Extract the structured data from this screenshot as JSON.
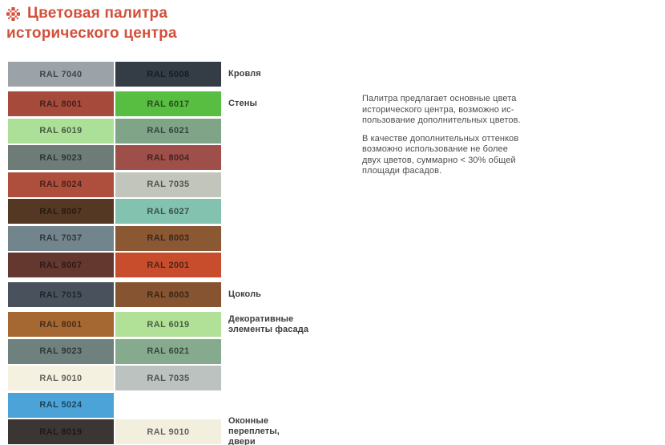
{
  "header": {
    "title_line1": "Цветовая палитра",
    "title_line2": "исторического центра",
    "accent_color": "#d2503c",
    "icon": "ornament-icon"
  },
  "palette": {
    "rows": [
      {
        "left": {
          "code": "RAL 7040",
          "color": "#9ba2a8"
        },
        "right": {
          "code": "RAL 5008",
          "color": "#343c46"
        },
        "label": [
          "Кровля"
        ],
        "group_start": false
      },
      {
        "left": {
          "code": "RAL 8001",
          "color": "#a64a3c"
        },
        "right": {
          "code": "RAL 6017",
          "color": "#58be41"
        },
        "label": [
          "Стены"
        ],
        "group_start": true
      },
      {
        "left": {
          "code": "RAL 6019",
          "color": "#acdf98"
        },
        "right": {
          "code": "RAL 6021",
          "color": "#80a488"
        },
        "label": [],
        "group_start": false
      },
      {
        "left": {
          "code": "RAL 9023",
          "color": "#6e7c78"
        },
        "right": {
          "code": "RAL 8004",
          "color": "#9f4f49"
        },
        "label": [],
        "group_start": false
      },
      {
        "left": {
          "code": "RAL 8024",
          "color": "#ae4e3c"
        },
        "right": {
          "code": "RAL 7035",
          "color": "#c2c5bb"
        },
        "label": [],
        "group_start": false
      },
      {
        "left": {
          "code": "RAL 8007",
          "color": "#553823"
        },
        "right": {
          "code": "RAL 6027",
          "color": "#83c2af"
        },
        "label": [],
        "group_start": false
      },
      {
        "left": {
          "code": "RAL 7037",
          "color": "#73858c"
        },
        "right": {
          "code": "RAL 8003",
          "color": "#8b5834"
        },
        "label": [],
        "group_start": false
      },
      {
        "left": {
          "code": "RAL 8007",
          "color": "#64382f"
        },
        "right": {
          "code": "RAL 2001",
          "color": "#c74d2d"
        },
        "label": [],
        "group_start": false
      },
      {
        "left": {
          "code": "RAL 7015",
          "color": "#49525c"
        },
        "right": {
          "code": "RAL 8003",
          "color": "#865430"
        },
        "label": [
          "Цоколь"
        ],
        "group_start": true
      },
      {
        "left": {
          "code": "RAL 8001",
          "color": "#a66832"
        },
        "right": {
          "code": "RAL 6019",
          "color": "#b1e197"
        },
        "label": [
          "Декоративные",
          "элементы фасада"
        ],
        "group_start": true
      },
      {
        "left": {
          "code": "RAL 9023",
          "color": "#6f817d"
        },
        "right": {
          "code": "RAL 6021",
          "color": "#85aa8d"
        },
        "label": [],
        "group_start": false
      },
      {
        "left": {
          "code": "RAL 9010",
          "color": "#f4f1e1"
        },
        "right": {
          "code": "RAL 7035",
          "color": "#bbc2bf"
        },
        "label": [],
        "group_start": false
      },
      {
        "left": {
          "code": "RAL 5024",
          "color": "#4ba3d8"
        },
        "right": null,
        "label": [],
        "group_start": false
      },
      {
        "left": {
          "code": "RAL 8019",
          "color": "#3b3533"
        },
        "right": {
          "code": "RAL 9010",
          "color": "#f2efde"
        },
        "label": [
          "Оконные",
          "переплеты,",
          "двери"
        ],
        "group_start": false
      }
    ]
  },
  "notes": {
    "paragraphs": [
      [
        "Палитра предлагает основные цвета",
        "исторического центра, возможно ис-",
        "пользование дополнительных цветов."
      ],
      [
        "В качестве дополнительных оттенков",
        "возможно использование не более",
        "двух цветов, суммарно < 30% общей",
        "площади фасадов."
      ]
    ]
  }
}
